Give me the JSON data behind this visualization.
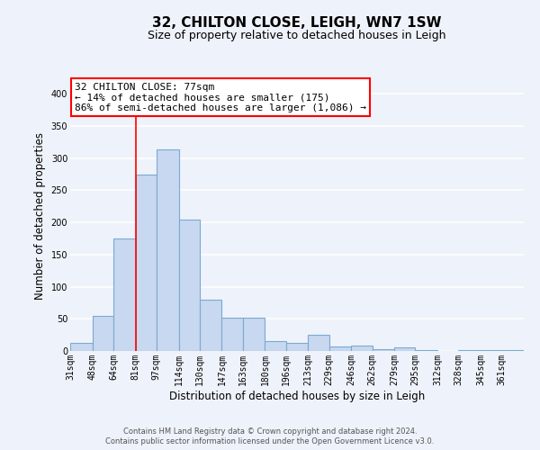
{
  "title": "32, CHILTON CLOSE, LEIGH, WN7 1SW",
  "subtitle": "Size of property relative to detached houses in Leigh",
  "xlabel": "Distribution of detached houses by size in Leigh",
  "ylabel": "Number of detached properties",
  "bar_color": "#c8d8f0",
  "bar_edge_color": "#7aaad0",
  "vline_x": 81,
  "vline_color": "red",
  "categories": [
    "31sqm",
    "48sqm",
    "64sqm",
    "81sqm",
    "97sqm",
    "114sqm",
    "130sqm",
    "147sqm",
    "163sqm",
    "180sqm",
    "196sqm",
    "213sqm",
    "229sqm",
    "246sqm",
    "262sqm",
    "279sqm",
    "295sqm",
    "312sqm",
    "328sqm",
    "345sqm",
    "361sqm"
  ],
  "bin_edges": [
    31,
    48,
    64,
    81,
    97,
    114,
    130,
    147,
    163,
    180,
    196,
    213,
    229,
    246,
    262,
    279,
    295,
    312,
    328,
    345,
    361,
    378
  ],
  "values": [
    12,
    54,
    175,
    275,
    314,
    204,
    80,
    52,
    52,
    15,
    13,
    25,
    7,
    9,
    3,
    5,
    2,
    0,
    1,
    1,
    1
  ],
  "ylim": [
    0,
    420
  ],
  "yticks": [
    0,
    50,
    100,
    150,
    200,
    250,
    300,
    350,
    400
  ],
  "annotation_title": "32 CHILTON CLOSE: 77sqm",
  "annotation_line1": "← 14% of detached houses are smaller (175)",
  "annotation_line2": "86% of semi-detached houses are larger (1,086) →",
  "annotation_box_color": "white",
  "annotation_box_edge": "red",
  "footnote1": "Contains HM Land Registry data © Crown copyright and database right 2024.",
  "footnote2": "Contains public sector information licensed under the Open Government Licence v3.0.",
  "background_color": "#eef2fa",
  "grid_color": "#ffffff",
  "title_fontsize": 11,
  "subtitle_fontsize": 9,
  "label_fontsize": 8.5,
  "tick_fontsize": 7,
  "annotation_fontsize": 8,
  "footnote_fontsize": 6
}
